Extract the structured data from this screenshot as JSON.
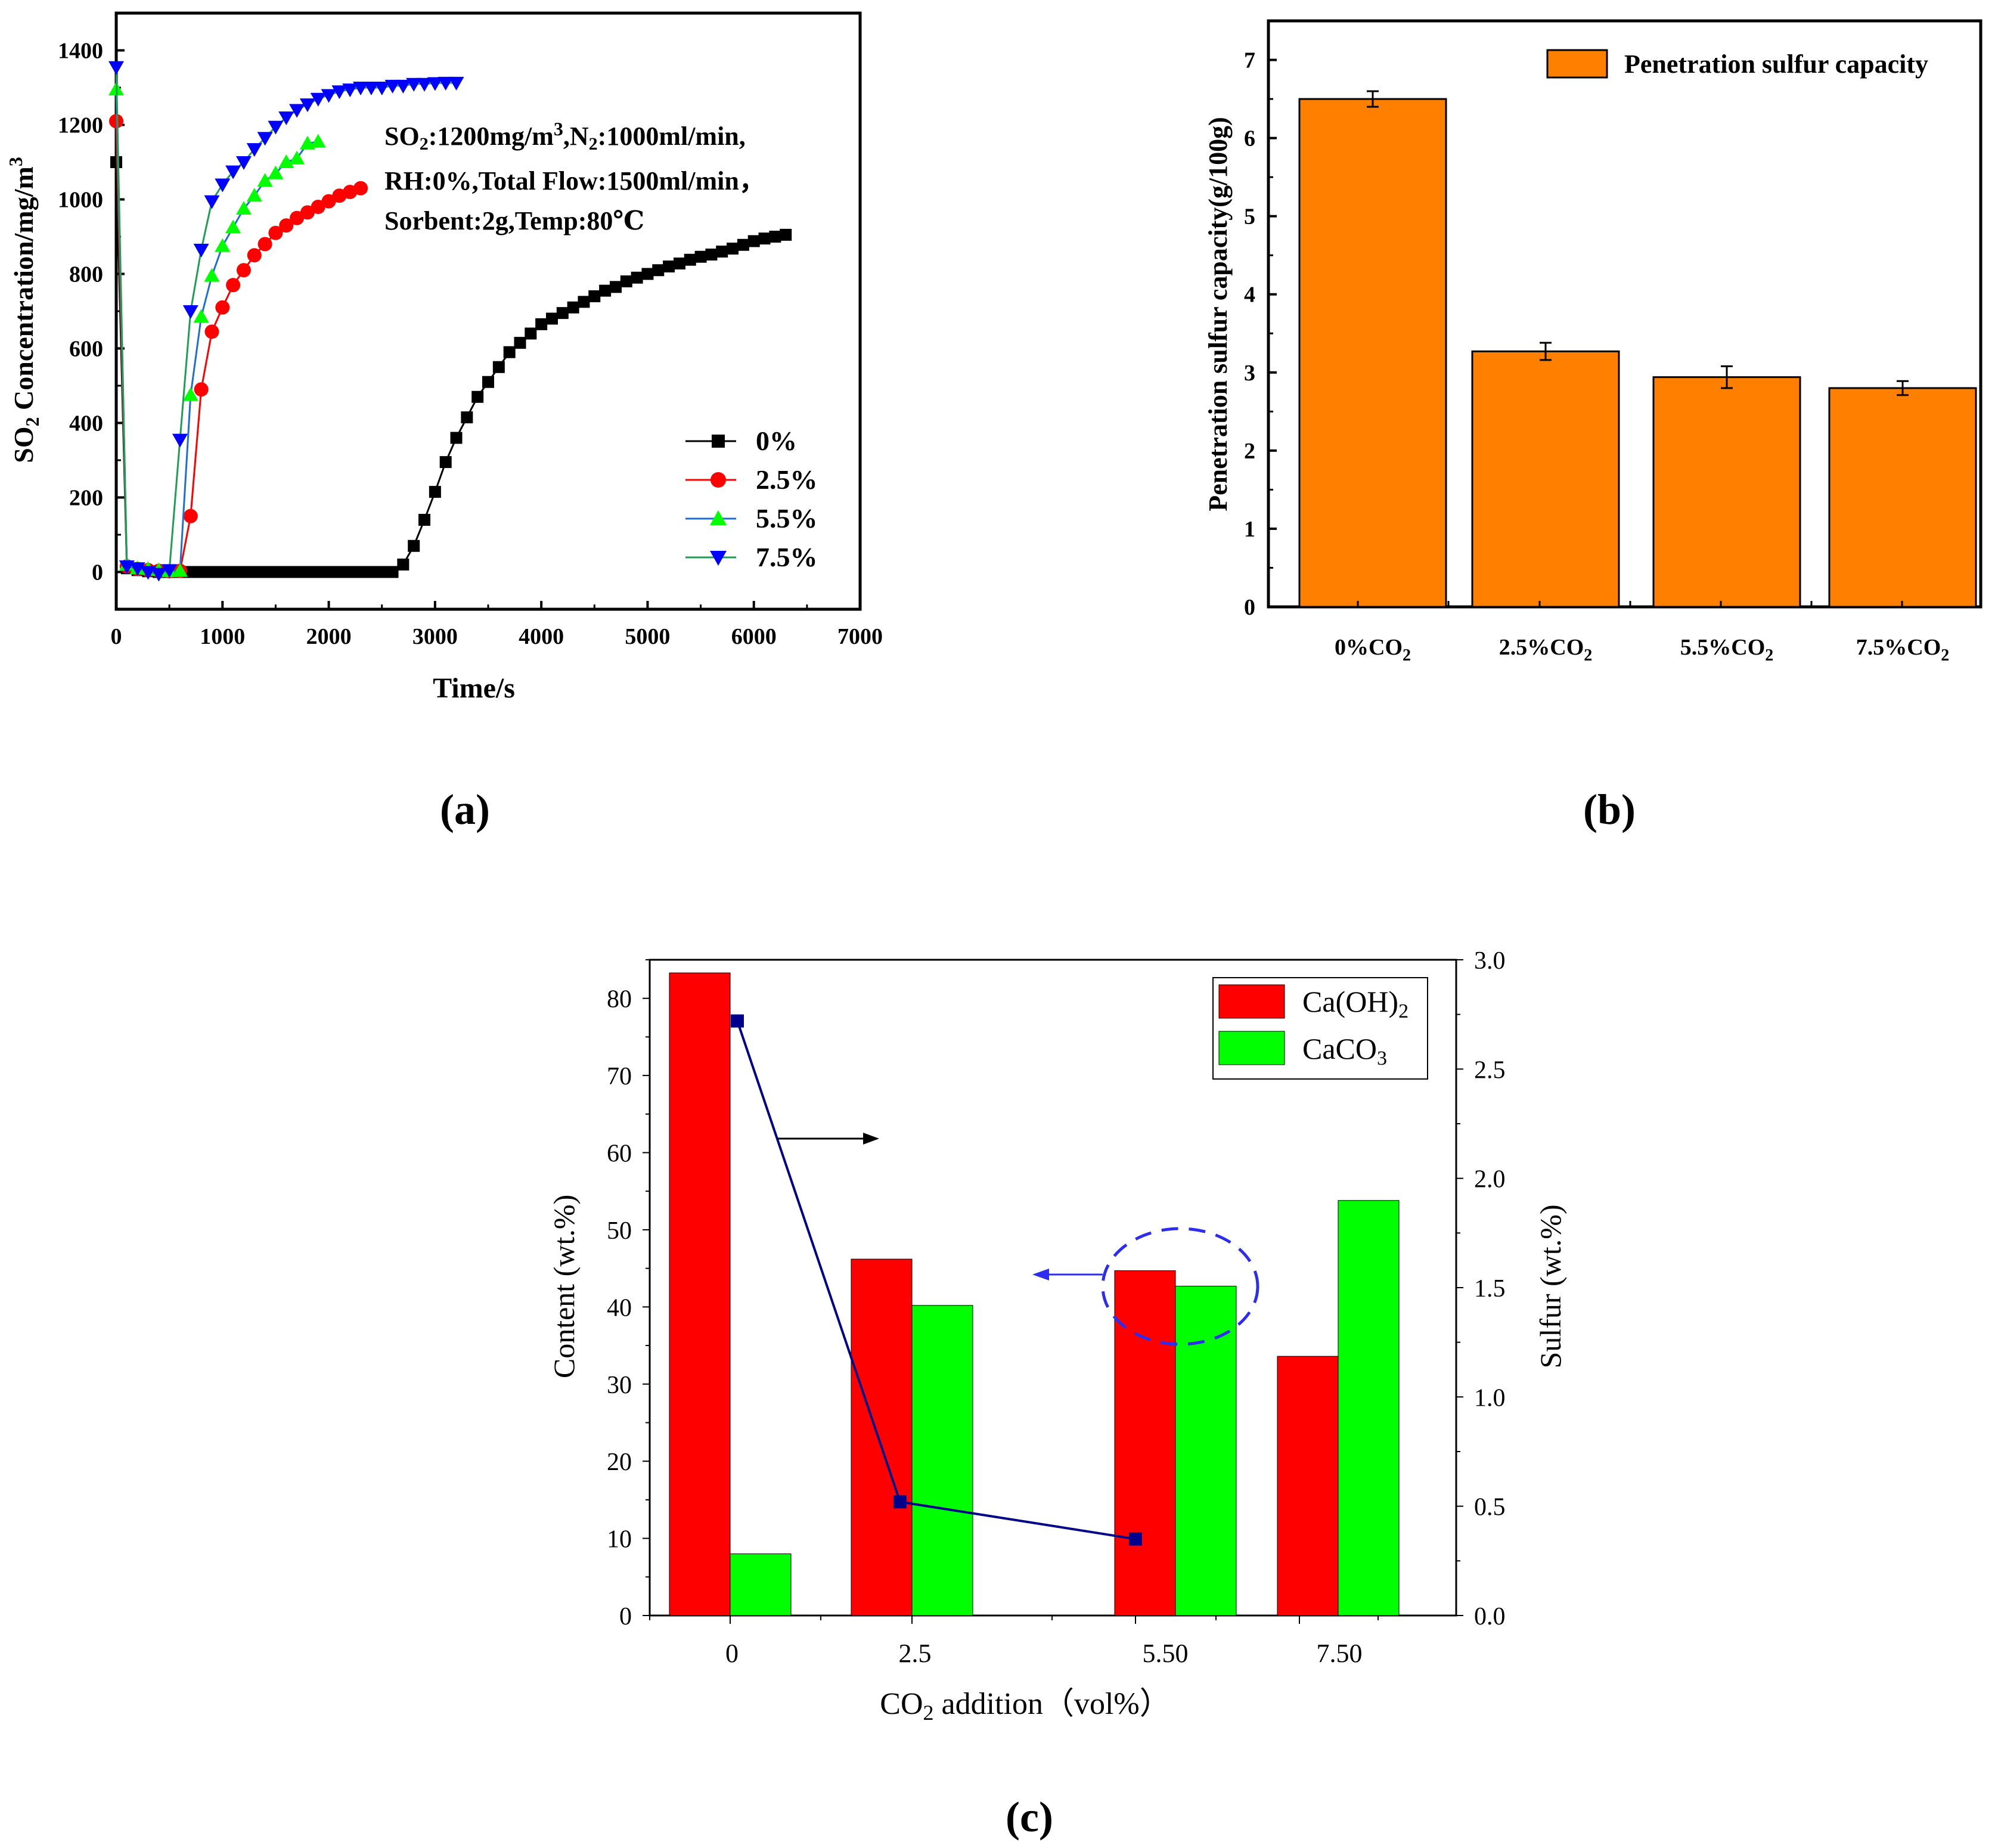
{
  "colors": {
    "black": "#000000",
    "red": "#ff0000",
    "green": "#00ff00",
    "blue": "#0000ff",
    "seriesGreen": "#1f9d55",
    "orange": "#ff8000",
    "navy": "#00008b",
    "bar_red": "#ff0000",
    "bar_green": "#00ff00",
    "ellipse": "#2d2df0"
  },
  "panels": {
    "a": "(a)",
    "b": "(b)",
    "c": "(c)"
  },
  "chart_data": [
    {
      "id": "a",
      "type": "line",
      "title": "",
      "xlabel": "Time/s",
      "ylabel": "SO2 Concentration/mg/m3",
      "ylabel_parts": {
        "main": "SO",
        "sub": "2",
        "rest": " Concentration/mg/m",
        "sup": "3"
      },
      "xlim": [
        0,
        7000
      ],
      "ylim": [
        -100,
        1500
      ],
      "xticks": [
        0,
        1000,
        2000,
        3000,
        4000,
        5000,
        6000,
        7000
      ],
      "yticks": [
        0,
        200,
        400,
        600,
        800,
        1000,
        1200,
        1400
      ],
      "annotation": [
        {
          "parts": [
            "SO",
            "2",
            ":1200mg/m",
            "3",
            ",N",
            "2",
            ":1000ml/min,"
          ]
        },
        {
          "text": "RH:0%,Total Flow:1500ml/min,",
          "text2": "RH:0%,Total Flow:1500ml/min，"
        },
        {
          "text": "Sorbent:2g,Temp:80℃"
        }
      ],
      "legend": "bottom-right",
      "series": [
        {
          "name": "0%",
          "marker": "square",
          "color": "#000000",
          "x": [
            0,
            100,
            200,
            300,
            400,
            500,
            600,
            700,
            800,
            900,
            1000,
            1100,
            1200,
            1300,
            1400,
            1500,
            1600,
            1700,
            1800,
            1900,
            2000,
            2100,
            2200,
            2300,
            2400,
            2500,
            2600,
            2700,
            2800,
            2900,
            3000,
            3100,
            3200,
            3300,
            3400,
            3500,
            3600,
            3700,
            3800,
            3900,
            4000,
            4100,
            4200,
            4300,
            4400,
            4500,
            4600,
            4700,
            4800,
            4900,
            5000,
            5100,
            5200,
            5300,
            5400,
            5500,
            5600,
            5700,
            5800,
            5900,
            6000,
            6100,
            6200,
            6300
          ],
          "y": [
            1100,
            10,
            5,
            2,
            0,
            0,
            0,
            0,
            0,
            0,
            0,
            0,
            0,
            0,
            0,
            0,
            0,
            0,
            0,
            0,
            0,
            0,
            0,
            0,
            0,
            0,
            0,
            20,
            70,
            140,
            215,
            295,
            360,
            415,
            470,
            510,
            550,
            590,
            615,
            640,
            665,
            680,
            695,
            710,
            725,
            740,
            755,
            765,
            780,
            790,
            800,
            810,
            820,
            828,
            838,
            846,
            852,
            860,
            868,
            878,
            888,
            895,
            900,
            905
          ]
        },
        {
          "name": "2.5%",
          "marker": "circle",
          "color": "#ff0000",
          "x": [
            0,
            100,
            200,
            300,
            400,
            500,
            600,
            700,
            800,
            900,
            1000,
            1100,
            1200,
            1300,
            1400,
            1500,
            1600,
            1700,
            1800,
            1900,
            2000,
            2100,
            2200,
            2300
          ],
          "y": [
            1210,
            15,
            8,
            5,
            3,
            2,
            3,
            150,
            490,
            645,
            710,
            770,
            810,
            850,
            880,
            910,
            930,
            950,
            965,
            980,
            995,
            1010,
            1020,
            1030
          ]
        },
        {
          "name": "5.5%",
          "marker": "triangle-up",
          "color": "#00ff00",
          "lineColor": "#1f6fd1",
          "x": [
            0,
            100,
            200,
            300,
            400,
            500,
            600,
            700,
            800,
            900,
            1000,
            1100,
            1200,
            1300,
            1400,
            1500,
            1600,
            1700,
            1800,
            1900
          ],
          "y": [
            1295,
            20,
            10,
            8,
            5,
            2,
            3,
            475,
            685,
            795,
            875,
            925,
            975,
            1010,
            1050,
            1070,
            1100,
            1110,
            1150,
            1155
          ]
        },
        {
          "name": "7.5%",
          "marker": "triangle-down",
          "color": "#0000ff",
          "lineColor": "#1f9d55",
          "x": [
            0,
            100,
            200,
            300,
            400,
            500,
            600,
            700,
            800,
            900,
            1000,
            1100,
            1200,
            1300,
            1400,
            1500,
            1600,
            1700,
            1800,
            1900,
            2000,
            2100,
            2200,
            2300,
            2400,
            2500,
            2600,
            2700,
            2800,
            2900,
            3000,
            3100,
            3200
          ],
          "y": [
            1355,
            15,
            10,
            0,
            -5,
            5,
            355,
            700,
            865,
            995,
            1040,
            1075,
            1100,
            1135,
            1165,
            1195,
            1220,
            1240,
            1255,
            1270,
            1280,
            1290,
            1295,
            1300,
            1300,
            1300,
            1305,
            1305,
            1310,
            1310,
            1312,
            1313,
            1313
          ]
        }
      ]
    },
    {
      "id": "b",
      "type": "bar",
      "title": "",
      "xlabel": "",
      "ylabel": "Penetration sulfur capacity(g/100g)",
      "ylim": [
        0,
        7.5
      ],
      "yticks": [
        0,
        1,
        2,
        3,
        4,
        5,
        6,
        7
      ],
      "legend": "top-right",
      "categories": [
        "0%CO2",
        "2.5%CO2",
        "5.5%CO2",
        "7.5%CO2"
      ],
      "category_parts": [
        {
          "main": "0%CO",
          "sub": "2"
        },
        {
          "main": "2.5%CO",
          "sub": "2"
        },
        {
          "main": "5.5%CO",
          "sub": "2"
        },
        {
          "main": "7.5%CO",
          "sub": "2"
        }
      ],
      "series": [
        {
          "name": "Penetration sulfur capacity",
          "values": [
            6.5,
            3.27,
            2.94,
            2.8
          ],
          "errors": [
            0.1,
            0.11,
            0.14,
            0.09
          ]
        }
      ]
    },
    {
      "id": "c",
      "type": "bar",
      "title": "",
      "xlabel": "CO2 addition（vol%）",
      "xlabel_parts": {
        "main": "CO",
        "sub": "2",
        "rest": " addition（vol%）"
      },
      "ylabel": "Content (wt.%)",
      "y2label": "Sulfur (wt.%)",
      "ylim": [
        0,
        85
      ],
      "y2lim": [
        0,
        3.0
      ],
      "yticks": [
        0,
        10,
        20,
        30,
        40,
        50,
        60,
        70,
        80
      ],
      "y2ticks": [
        "0.0",
        "0.5",
        "1.0",
        "1.5",
        "2.0",
        "2.5",
        "3.0"
      ],
      "categories": [
        "0",
        "2.5",
        "5.50",
        "7.50"
      ],
      "legend": "top-right",
      "series": [
        {
          "name": "Ca(OH)2",
          "name_parts": {
            "main": "Ca(OH)",
            "sub": "2"
          },
          "color": "#ff0000",
          "values": [
            83.3,
            46.2,
            44.7,
            33.6
          ]
        },
        {
          "name": "CaCO3",
          "name_parts": {
            "main": "CaCO",
            "sub": "3"
          },
          "color": "#00ff00",
          "values": [
            8,
            40.2,
            42.7,
            53.8
          ]
        }
      ],
      "sulfur_series": {
        "name": "Sulfur",
        "x_index": [
          0,
          1,
          2
        ],
        "values": [
          2.72,
          0.52,
          0.35
        ]
      }
    }
  ]
}
